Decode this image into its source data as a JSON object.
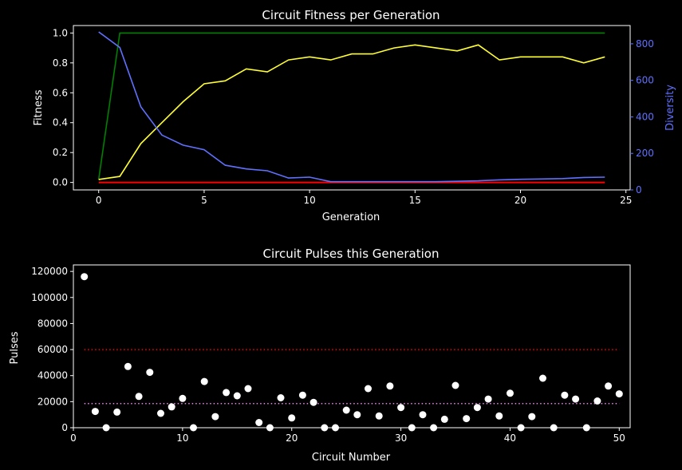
{
  "chart_data": [
    {
      "type": "line",
      "title": "Circuit Fitness per Generation",
      "xlabel": "Generation",
      "ylabel": "Fitness",
      "y2label": "Diversity",
      "xlim": [
        -1.2,
        25.2
      ],
      "ylim": [
        -0.05,
        1.05
      ],
      "y2lim": [
        0,
        900
      ],
      "xticks": [
        0,
        5,
        10,
        15,
        20,
        25
      ],
      "yticks": [
        0.0,
        0.2,
        0.4,
        0.6,
        0.8,
        1.0
      ],
      "y2ticks": [
        0,
        200,
        400,
        600,
        800
      ],
      "x": [
        0,
        1,
        2,
        3,
        4,
        5,
        6,
        7,
        8,
        9,
        10,
        11,
        12,
        13,
        14,
        15,
        16,
        17,
        18,
        19,
        20,
        21,
        22,
        23,
        24
      ],
      "series": [
        {
          "axis": "left",
          "color": "#008000",
          "values": [
            0.02,
            1.0,
            1.0,
            1.0,
            1.0,
            1.0,
            1.0,
            1.0,
            1.0,
            1.0,
            1.0,
            1.0,
            1.0,
            1.0,
            1.0,
            1.0,
            1.0,
            1.0,
            1.0,
            1.0,
            1.0,
            1.0,
            1.0,
            1.0,
            1.0
          ]
        },
        {
          "axis": "left",
          "color": "#ffff33",
          "values": [
            0.02,
            0.04,
            0.26,
            0.4,
            0.54,
            0.66,
            0.68,
            0.76,
            0.74,
            0.82,
            0.84,
            0.82,
            0.86,
            0.86,
            0.9,
            0.92,
            0.9,
            0.88,
            0.92,
            0.82,
            0.84,
            0.84,
            0.84,
            0.8,
            0.84
          ]
        },
        {
          "axis": "left",
          "color": "#ff0000",
          "values": [
            0,
            0,
            0,
            0,
            0,
            0,
            0,
            0,
            0,
            0,
            0,
            0,
            0,
            0,
            0,
            0,
            0,
            0,
            0,
            0,
            0,
            0,
            0,
            0,
            0
          ]
        },
        {
          "axis": "right",
          "color": "#6070ff",
          "values": [
            865,
            780,
            455,
            300,
            245,
            220,
            135,
            115,
            105,
            65,
            70,
            45,
            45,
            45,
            45,
            45,
            45,
            47,
            50,
            55,
            58,
            60,
            62,
            68,
            70
          ]
        }
      ]
    },
    {
      "type": "scatter",
      "title": "Circuit Pulses this Generation",
      "xlabel": "Circuit Number",
      "ylabel": "Pulses",
      "xlim": [
        0,
        51
      ],
      "ylim": [
        0,
        125000
      ],
      "xticks": [
        0,
        10,
        20,
        30,
        40,
        50
      ],
      "yticks": [
        0,
        20000,
        40000,
        60000,
        80000,
        100000,
        120000
      ],
      "x": [
        1,
        2,
        3,
        4,
        5,
        6,
        7,
        8,
        9,
        10,
        11,
        12,
        13,
        14,
        15,
        16,
        17,
        18,
        19,
        20,
        21,
        22,
        23,
        24,
        25,
        26,
        27,
        28,
        29,
        30,
        31,
        32,
        33,
        34,
        35,
        36,
        37,
        38,
        39,
        40,
        41,
        42,
        43,
        44,
        45,
        46,
        47,
        48,
        49,
        50
      ],
      "y": [
        116000,
        12500,
        0,
        12000,
        47000,
        24000,
        42500,
        11000,
        16000,
        22500,
        0,
        35500,
        8500,
        27000,
        24500,
        30000,
        4000,
        0,
        23000,
        7500,
        25000,
        19500,
        0,
        0,
        13500,
        10000,
        30000,
        9000,
        32000,
        15500,
        0,
        10000,
        0,
        6500,
        32500,
        7000,
        15500,
        22000,
        9000,
        26500,
        0,
        8500,
        38000,
        0,
        25000,
        22000,
        0,
        20500,
        32000,
        26000
      ],
      "point_color": "#ffffff",
      "hlines": [
        {
          "y": 60000,
          "color": "#ff0000",
          "style": "dotted"
        },
        {
          "y": 18500,
          "color": "#ee82ee",
          "style": "dotted"
        }
      ]
    }
  ]
}
